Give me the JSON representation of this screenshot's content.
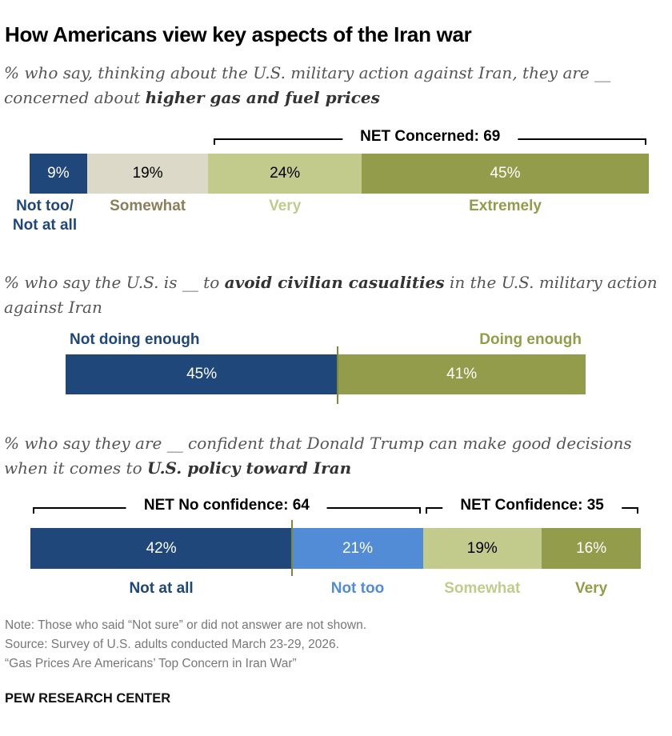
{
  "title": "How Americans view key aspects of the Iran war",
  "chart_data": [
    {
      "type": "bar",
      "orientation": "horizontal-stacked",
      "subtitle_pre": "% who say, thinking about the U.S. military action against Iran, they are __ concerned about ",
      "subtitle_bold": "higher gas and fuel prices",
      "subtitle_post": "",
      "categories": [
        "Not too/ Not at all",
        "Somewhat",
        "Very",
        "Extremely"
      ],
      "values": [
        9,
        19,
        24,
        45
      ],
      "colors": [
        "#1f477a",
        "#dcd9c8",
        "#c3cb8c",
        "#939c4a"
      ],
      "label_colors": [
        "#1f477a",
        "#8a7f5a",
        "#c3cb8c",
        "#939c4a"
      ],
      "value_text_colors": [
        "#fff",
        "#000",
        "#000",
        "#fff"
      ],
      "net": [
        {
          "label": "NET Concerned: 69",
          "from": 2,
          "to": 3
        }
      ]
    },
    {
      "type": "bar",
      "orientation": "horizontal-diverging",
      "subtitle_pre": "% who say the U.S. is __ to ",
      "subtitle_bold": "avoid civilian casualities",
      "subtitle_post": " in the U.S. military action against Iran",
      "categories": [
        "Not doing enough",
        "Doing enough"
      ],
      "values": [
        45,
        41
      ],
      "colors": [
        "#1f477a",
        "#939c4a"
      ],
      "label_colors": [
        "#1f477a",
        "#939c4a"
      ],
      "value_text_colors": [
        "#fff",
        "#fff"
      ]
    },
    {
      "type": "bar",
      "orientation": "horizontal-stacked",
      "subtitle_pre": "% who say they are __ confident that Donald Trump can make good decisions when it comes to ",
      "subtitle_bold": "U.S. policy toward Iran",
      "subtitle_post": "",
      "categories": [
        "Not at all",
        "Not too",
        "Somewhat",
        "Very"
      ],
      "values": [
        42,
        21,
        19,
        16
      ],
      "colors": [
        "#1f477a",
        "#528cd6",
        "#c3cb8c",
        "#939c4a"
      ],
      "label_colors": [
        "#1f477a",
        "#528cd6",
        "#c3cb8c",
        "#939c4a"
      ],
      "value_text_colors": [
        "#fff",
        "#fff",
        "#000",
        "#fff"
      ],
      "net": [
        {
          "label": "NET No confidence: 64",
          "from": 0,
          "to": 1
        },
        {
          "label": "NET Confidence: 35",
          "from": 2,
          "to": 3
        }
      ]
    }
  ],
  "notes": [
    "Note: Those who said “Not sure” or did not answer are not shown.",
    "Source: Survey of U.S. adults conducted March 23-29, 2026.",
    "“Gas Prices Are Americans’ Top Concern in Iran War”"
  ],
  "brand": "PEW RESEARCH CENTER"
}
